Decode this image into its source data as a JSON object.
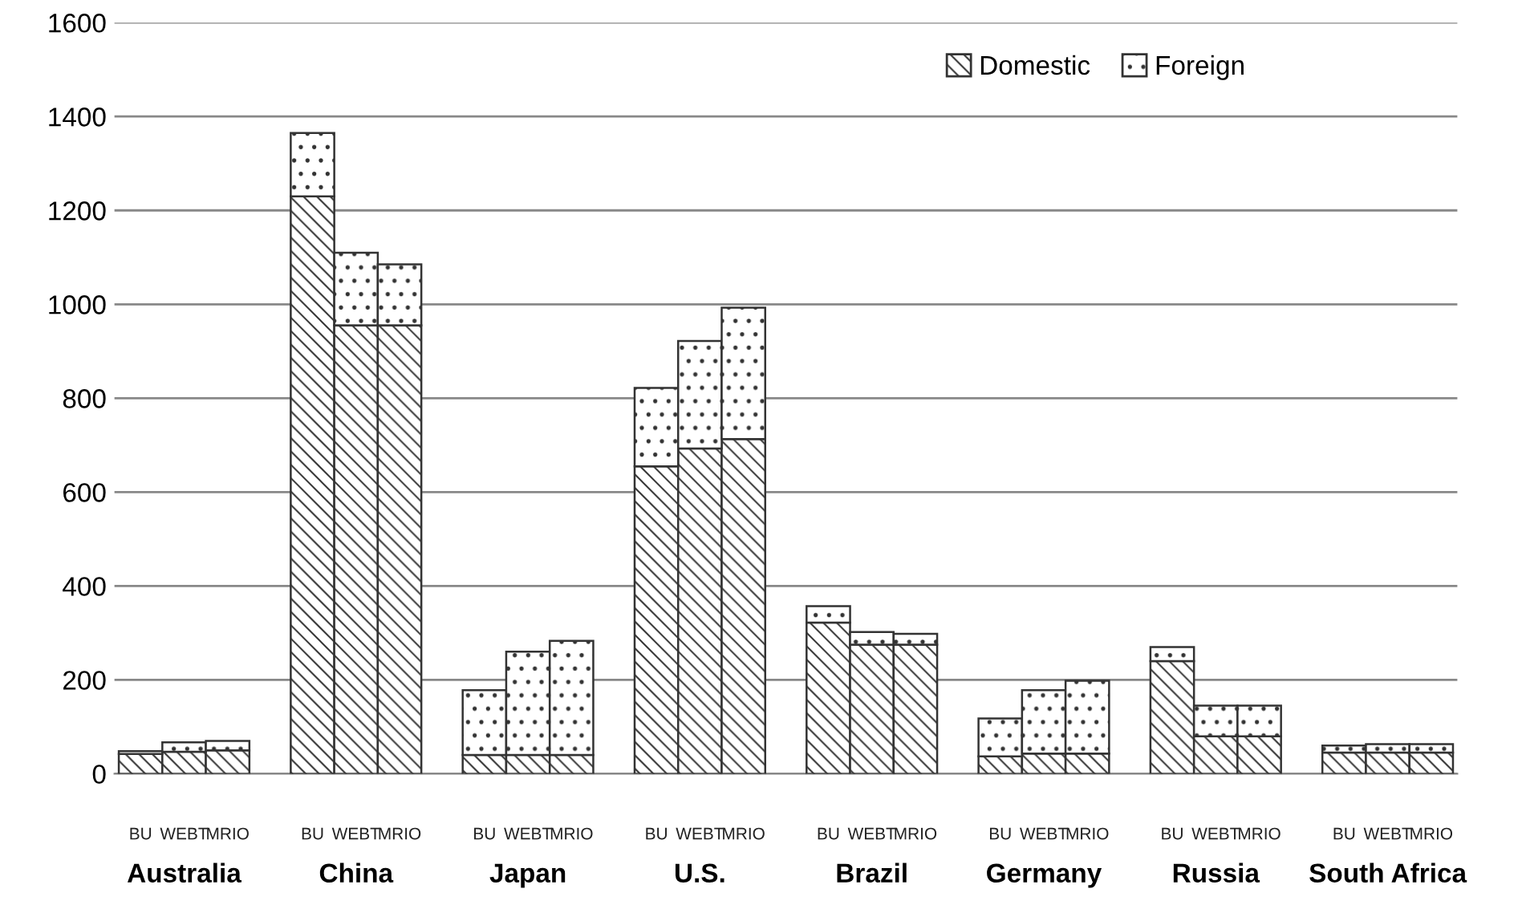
{
  "chart_data": {
    "type": "bar",
    "stacked": true,
    "categories": [
      "BU",
      "WEBT",
      "MRIO",
      "BU",
      "WEBT",
      "MRIO",
      "BU",
      "WEBT",
      "MRIO",
      "BU",
      "WEBT",
      "MRIO",
      "BU",
      "WEBT",
      "MRIO",
      "BU",
      "WEBT",
      "MRIO",
      "BU",
      "WEBT",
      "MRIO",
      "BU",
      "WEBT",
      "MRIO"
    ],
    "series": [
      {
        "name": "Domestic",
        "color": "#333333",
        "values": [
          42,
          47,
          50,
          1230,
          955,
          955,
          40,
          40,
          40,
          655,
          693,
          713,
          322,
          275,
          275,
          37,
          43,
          43,
          240,
          80,
          80,
          45,
          45,
          45
        ]
      },
      {
        "name": "Foreign",
        "color": "#333333",
        "values": [
          6,
          20,
          20,
          135,
          155,
          130,
          138,
          220,
          243,
          167,
          229,
          280,
          35,
          27,
          23,
          81,
          135,
          155,
          30,
          65,
          65,
          15,
          18,
          18
        ]
      }
    ],
    "annotations": [
      "Australia",
      "China",
      "Japan",
      "U.S.",
      "Brazil",
      "Germany",
      "Russia",
      "South Africa"
    ],
    "ylim": [
      0,
      1600
    ],
    "yticks": [
      0,
      200,
      400,
      600,
      800,
      1000,
      1200,
      1400,
      1600
    ],
    "grid": "y",
    "legend": "top right"
  }
}
